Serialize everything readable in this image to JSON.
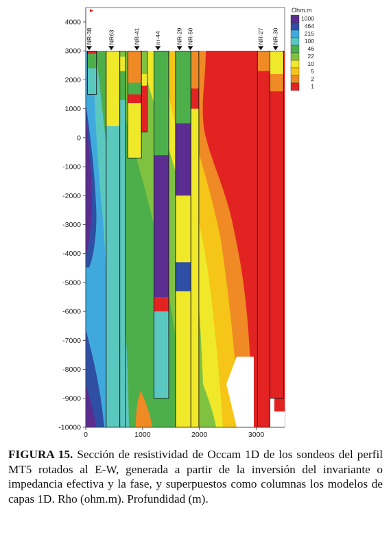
{
  "chart_data": {
    "type": "heatmap",
    "title": "",
    "xlabel": "",
    "ylabel": "",
    "xlim": [
      0,
      3500
    ],
    "ylim": [
      -10000,
      4000
    ],
    "x_ticks": [
      "0",
      "1000",
      "2000",
      "3000"
    ],
    "y_ticks": [
      "4000",
      "3000",
      "2000",
      "1000",
      "0",
      "-1000",
      "-2000",
      "-3000",
      "-4000",
      "-5000",
      "-6000",
      "-7000",
      "-8000",
      "-9000",
      "-10000"
    ],
    "legend": {
      "title": "Ohm.m",
      "labels": [
        "1000",
        "464",
        "215",
        "100",
        "46",
        "22",
        "10",
        "5",
        "2",
        "1"
      ],
      "colors": [
        "#5b2d91",
        "#2e4fa3",
        "#3fa9dd",
        "#5bc8c0",
        "#4daf4a",
        "#7fc241",
        "#f0e92a",
        "#f5c518",
        "#f08a24",
        "#e32222"
      ]
    },
    "stations": [
      {
        "name": "NR-38",
        "x": 60
      },
      {
        "name": "NR63",
        "x": 450
      },
      {
        "name": "NR-41",
        "x": 900
      },
      {
        "name": "nr-44",
        "x": 1270
      },
      {
        "name": "NR-29",
        "x": 1650
      },
      {
        "name": "NR-50",
        "x": 1840
      },
      {
        "name": "NR-27",
        "x": 3080
      },
      {
        "name": "NR-30",
        "x": 3340
      }
    ],
    "columns": [
      {
        "x0": 30,
        "x1": 190,
        "layers": [
          [
            3000,
            2900,
            "#e32222"
          ],
          [
            2900,
            2400,
            "#4daf4a"
          ],
          [
            2400,
            1500,
            "#5bc8c0"
          ]
        ]
      },
      {
        "x0": 360,
        "x1": 600,
        "layers": [
          [
            3000,
            400,
            "#f0e92a"
          ],
          [
            400,
            -10000,
            "#5bc8c0"
          ]
        ]
      },
      {
        "x0": 600,
        "x1": 700,
        "layers": [
          [
            3000,
            2800,
            "#7fc241"
          ],
          [
            2800,
            2300,
            "#f0e92a"
          ],
          [
            2300,
            1300,
            "#4daf4a"
          ],
          [
            1300,
            -10000,
            "#5bc8c0"
          ]
        ]
      },
      {
        "x0": 740,
        "x1": 980,
        "layers": [
          [
            3000,
            1900,
            "#f08a24"
          ],
          [
            1900,
            1500,
            "#4daf4a"
          ],
          [
            1500,
            1200,
            "#e32222"
          ],
          [
            1200,
            200,
            "#f0e92a"
          ],
          [
            200,
            -700,
            "#f0e92a"
          ]
        ]
      },
      {
        "x0": 980,
        "x1": 1080,
        "layers": [
          [
            3000,
            2200,
            "#7fc241"
          ],
          [
            2200,
            1800,
            "#f0e92a"
          ],
          [
            1800,
            200,
            "#e32222"
          ]
        ]
      },
      {
        "x0": 1200,
        "x1": 1460,
        "layers": [
          [
            3000,
            -600,
            "#4daf4a"
          ],
          [
            -600,
            -5500,
            "#5b2d91"
          ],
          [
            -5500,
            -6000,
            "#e32222"
          ],
          [
            -6000,
            -9000,
            "#5bc8c0"
          ]
        ]
      },
      {
        "x0": 1580,
        "x1": 1850,
        "layers": [
          [
            3000,
            500,
            "#4daf4a"
          ],
          [
            500,
            -2000,
            "#5b2d91"
          ],
          [
            -2000,
            -4300,
            "#f0e92a"
          ],
          [
            -4300,
            -5300,
            "#2e4fa3"
          ],
          [
            -5300,
            -10000,
            "#f0e92a"
          ]
        ]
      },
      {
        "x0": 1850,
        "x1": 1990,
        "layers": [
          [
            3000,
            1700,
            "#f08a24"
          ],
          [
            1700,
            1000,
            "#e32222"
          ],
          [
            1000,
            -10000,
            "#f0e92a"
          ]
        ]
      },
      {
        "x0": 3020,
        "x1": 3240,
        "layers": [
          [
            3000,
            2300,
            "#f08a24"
          ],
          [
            2300,
            -10000,
            "#e32222"
          ]
        ]
      },
      {
        "x0": 3240,
        "x1": 3480,
        "layers": [
          [
            3000,
            2200,
            "#f0e92a"
          ],
          [
            2200,
            1600,
            "#f08a24"
          ],
          [
            1600,
            -9000,
            "#e32222"
          ]
        ]
      }
    ]
  },
  "caption": {
    "label": "FIGURA 15.",
    "text": " Sección de resistividad de Occam 1D de los sondeos del perfil MT5 rotados al E-W, generada a partir de la inversión del invariante o impedancia efectiva y la fase, y superpuestos como columnas los  modelos de capas 1D. Rho (ohm.m). Profundidad (m)."
  }
}
